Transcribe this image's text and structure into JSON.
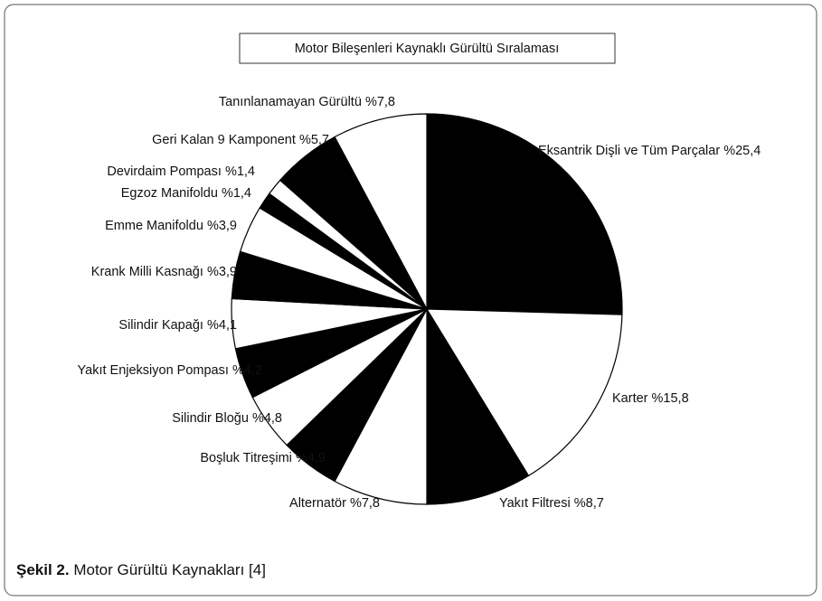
{
  "chart_data": {
    "type": "pie",
    "title": "Motor Bileşenleri Kaynaklı Gürültü Sıralaması",
    "categories": [
      "Eksantrik Dişli ve Tüm Parçalar",
      "Karter",
      "Yakıt Filtresi",
      "Alternatör",
      "Boşluk Titreşimi",
      "Silindir Bloğu",
      "Yakıt Enjeksiyon Pompası",
      "Silindir Kapağı",
      "Krank Milli Kasnağı",
      "Emme Manifoldu",
      "Egzoz Manifoldu",
      "Devirdaim Pompası",
      "Geri Kalan 9 Kamponent",
      "Tanınlanamayan Gürültü"
    ],
    "values": [
      25.4,
      15.8,
      8.7,
      7.8,
      4.9,
      4.8,
      4.2,
      4.1,
      3.9,
      3.9,
      1.4,
      1.4,
      5.7,
      7.8
    ],
    "value_labels": [
      "%25,4",
      "%15,8",
      "%8,7",
      "%7,8",
      "%4,9",
      "%4,8",
      "%4,2",
      "%4,1",
      "%3,9",
      "%3,9",
      "%1,4",
      "%1,4",
      "%5,7",
      "%7,8"
    ],
    "colors": [
      "#000000",
      "#ffffff",
      "#000000",
      "#ffffff",
      "#000000",
      "#ffffff",
      "#000000",
      "#ffffff",
      "#000000",
      "#ffffff",
      "#000000",
      "#ffffff",
      "#000000",
      "#ffffff"
    ]
  },
  "caption": {
    "label": "Şekil 2.",
    "text": "Motor Gürültü Kaynakları [4]"
  }
}
